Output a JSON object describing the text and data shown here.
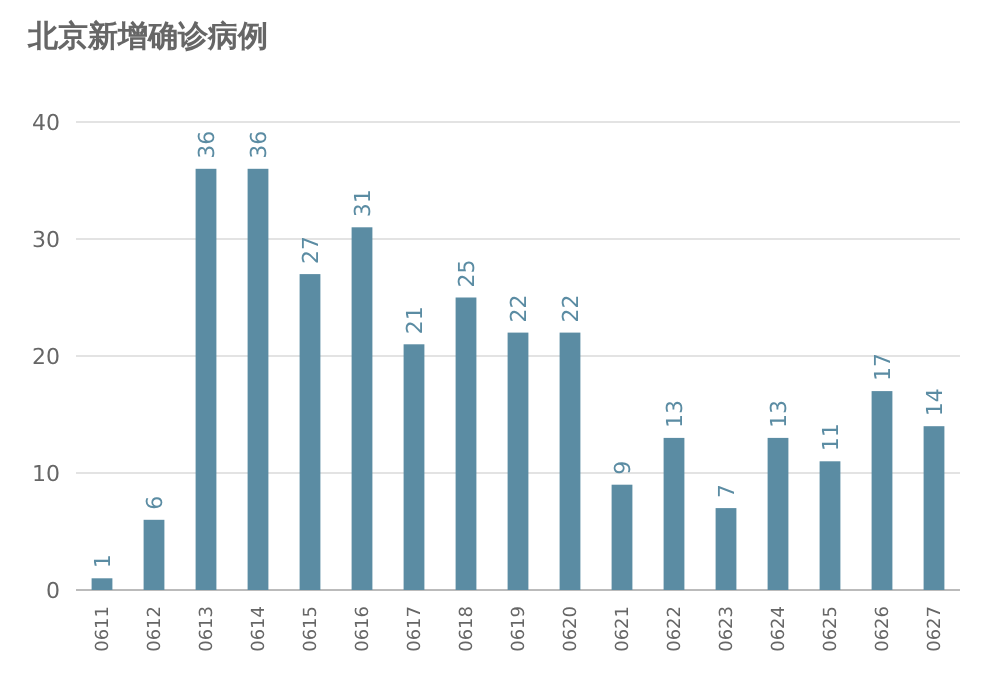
{
  "chart_data": {
    "type": "bar",
    "title": "北京新增确诊病例",
    "categories": [
      "0611",
      "0612",
      "0613",
      "0614",
      "0615",
      "0616",
      "0617",
      "0618",
      "0619",
      "0620",
      "0621",
      "0622",
      "0623",
      "0624",
      "0625",
      "0626",
      "0627"
    ],
    "values": [
      1,
      6,
      36,
      36,
      27,
      31,
      21,
      25,
      22,
      22,
      9,
      13,
      7,
      13,
      11,
      17,
      14
    ],
    "color": "#5b8ca3",
    "ylim": [
      0,
      40
    ],
    "yticks": [
      0,
      10,
      20,
      30,
      40
    ],
    "grid": "y",
    "data_labels": true
  }
}
